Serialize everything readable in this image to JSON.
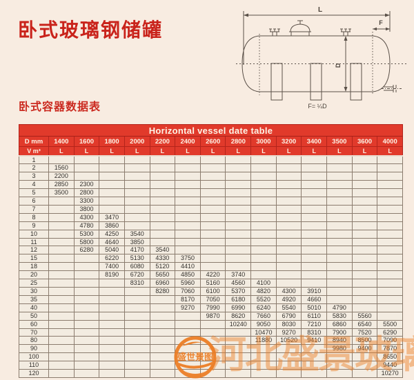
{
  "page": {
    "title": "卧式玻璃钢储罐",
    "subtitle": "卧式容器数据表"
  },
  "colors": {
    "header_red": "#e13a2b",
    "header_line_red": "#b3241b",
    "title_red": "#c9231b",
    "watermark_orange": "#ec7c22",
    "page_background": "#f8ece1",
    "cell_background": "#f3ece1"
  },
  "diagram": {
    "length_label": "L",
    "head_label": "F",
    "diameter_label": "D",
    "formula_label": "F= ¼D"
  },
  "table": {
    "title": "Horizontal vessel date table",
    "d_header": "D mm",
    "v_header": "V m³",
    "l_label": "L",
    "diameters": [
      "1400",
      "1600",
      "1800",
      "2000",
      "2200",
      "2400",
      "2600",
      "2800",
      "3000",
      "3200",
      "3400",
      "3500",
      "3600",
      "4000"
    ],
    "rows": [
      {
        "v": "1",
        "cells": [
          "",
          "",
          "",
          "",
          "",
          "",
          "",
          "",
          "",
          "",
          "",
          "",
          "",
          ""
        ]
      },
      {
        "v": "2",
        "cells": [
          "1560",
          "",
          "",
          "",
          "",
          "",
          "",
          "",
          "",
          "",
          "",
          "",
          "",
          ""
        ]
      },
      {
        "v": "3",
        "cells": [
          "2200",
          "",
          "",
          "",
          "",
          "",
          "",
          "",
          "",
          "",
          "",
          "",
          "",
          ""
        ]
      },
      {
        "v": "4",
        "cells": [
          "2850",
          "2300",
          "",
          "",
          "",
          "",
          "",
          "",
          "",
          "",
          "",
          "",
          "",
          ""
        ]
      },
      {
        "v": "5",
        "cells": [
          "3500",
          "2800",
          "",
          "",
          "",
          "",
          "",
          "",
          "",
          "",
          "",
          "",
          "",
          ""
        ]
      },
      {
        "v": "6",
        "cells": [
          "",
          "3300",
          "",
          "",
          "",
          "",
          "",
          "",
          "",
          "",
          "",
          "",
          "",
          ""
        ]
      },
      {
        "v": "7",
        "cells": [
          "",
          "3800",
          "",
          "",
          "",
          "",
          "",
          "",
          "",
          "",
          "",
          "",
          "",
          ""
        ]
      },
      {
        "v": "8",
        "cells": [
          "",
          "4300",
          "3470",
          "",
          "",
          "",
          "",
          "",
          "",
          "",
          "",
          "",
          "",
          ""
        ]
      },
      {
        "v": "9",
        "cells": [
          "",
          "4780",
          "3860",
          "",
          "",
          "",
          "",
          "",
          "",
          "",
          "",
          "",
          "",
          ""
        ]
      },
      {
        "v": "10",
        "cells": [
          "",
          "5300",
          "4250",
          "3540",
          "",
          "",
          "",
          "",
          "",
          "",
          "",
          "",
          "",
          ""
        ]
      },
      {
        "v": "11",
        "cells": [
          "",
          "5800",
          "4640",
          "3850",
          "",
          "",
          "",
          "",
          "",
          "",
          "",
          "",
          "",
          ""
        ]
      },
      {
        "v": "12",
        "cells": [
          "",
          "6280",
          "5040",
          "4170",
          "3540",
          "",
          "",
          "",
          "",
          "",
          "",
          "",
          "",
          ""
        ]
      },
      {
        "v": "15",
        "cells": [
          "",
          "",
          "6220",
          "5130",
          "4330",
          "3750",
          "",
          "",
          "",
          "",
          "",
          "",
          "",
          ""
        ]
      },
      {
        "v": "18",
        "cells": [
          "",
          "",
          "7400",
          "6080",
          "5120",
          "4410",
          "",
          "",
          "",
          "",
          "",
          "",
          "",
          ""
        ]
      },
      {
        "v": "20",
        "cells": [
          "",
          "",
          "8190",
          "6720",
          "5650",
          "4850",
          "4220",
          "3740",
          "",
          "",
          "",
          "",
          "",
          ""
        ]
      },
      {
        "v": "25",
        "cells": [
          "",
          "",
          "",
          "8310",
          "6960",
          "5960",
          "5160",
          "4560",
          "4100",
          "",
          "",
          "",
          "",
          ""
        ]
      },
      {
        "v": "30",
        "cells": [
          "",
          "",
          "",
          "",
          "8280",
          "7060",
          "6100",
          "5370",
          "4820",
          "4300",
          "3910",
          "",
          "",
          ""
        ]
      },
      {
        "v": "35",
        "cells": [
          "",
          "",
          "",
          "",
          "",
          "8170",
          "7050",
          "6180",
          "5520",
          "4920",
          "4660",
          "",
          "",
          ""
        ]
      },
      {
        "v": "40",
        "cells": [
          "",
          "",
          "",
          "",
          "",
          "9270",
          "7990",
          "6990",
          "6240",
          "5540",
          "5010",
          "4790",
          "",
          ""
        ]
      },
      {
        "v": "50",
        "cells": [
          "",
          "",
          "",
          "",
          "",
          "",
          "9870",
          "8620",
          "7660",
          "6790",
          "6110",
          "5830",
          "5560",
          ""
        ]
      },
      {
        "v": "60",
        "cells": [
          "",
          "",
          "",
          "",
          "",
          "",
          "",
          "10240",
          "9050",
          "8030",
          "7210",
          "6860",
          "6540",
          "5500"
        ]
      },
      {
        "v": "70",
        "cells": [
          "",
          "",
          "",
          "",
          "",
          "",
          "",
          "",
          "10470",
          "9270",
          "8310",
          "7900",
          "7520",
          "6290"
        ]
      },
      {
        "v": "80",
        "cells": [
          "",
          "",
          "",
          "",
          "",
          "",
          "",
          "",
          "11880",
          "10520",
          "9410",
          "8940",
          "8500",
          "7090"
        ]
      },
      {
        "v": "90",
        "cells": [
          "",
          "",
          "",
          "",
          "",
          "",
          "",
          "",
          "",
          "",
          "",
          "9980",
          "9400",
          "7870"
        ]
      },
      {
        "v": "100",
        "cells": [
          "",
          "",
          "",
          "",
          "",
          "",
          "",
          "",
          "",
          "",
          "",
          "",
          "",
          "8650"
        ]
      },
      {
        "v": "110",
        "cells": [
          "",
          "",
          "",
          "",
          "",
          "",
          "",
          "",
          "",
          "",
          "",
          "",
          "",
          "9440"
        ]
      },
      {
        "v": "120",
        "cells": [
          "",
          "",
          "",
          "",
          "",
          "",
          "",
          "",
          "",
          "",
          "",
          "",
          "",
          "10270"
        ]
      }
    ]
  },
  "watermark": {
    "logo_text": "盛世景图",
    "text": "河北盛景玻璃钢"
  }
}
